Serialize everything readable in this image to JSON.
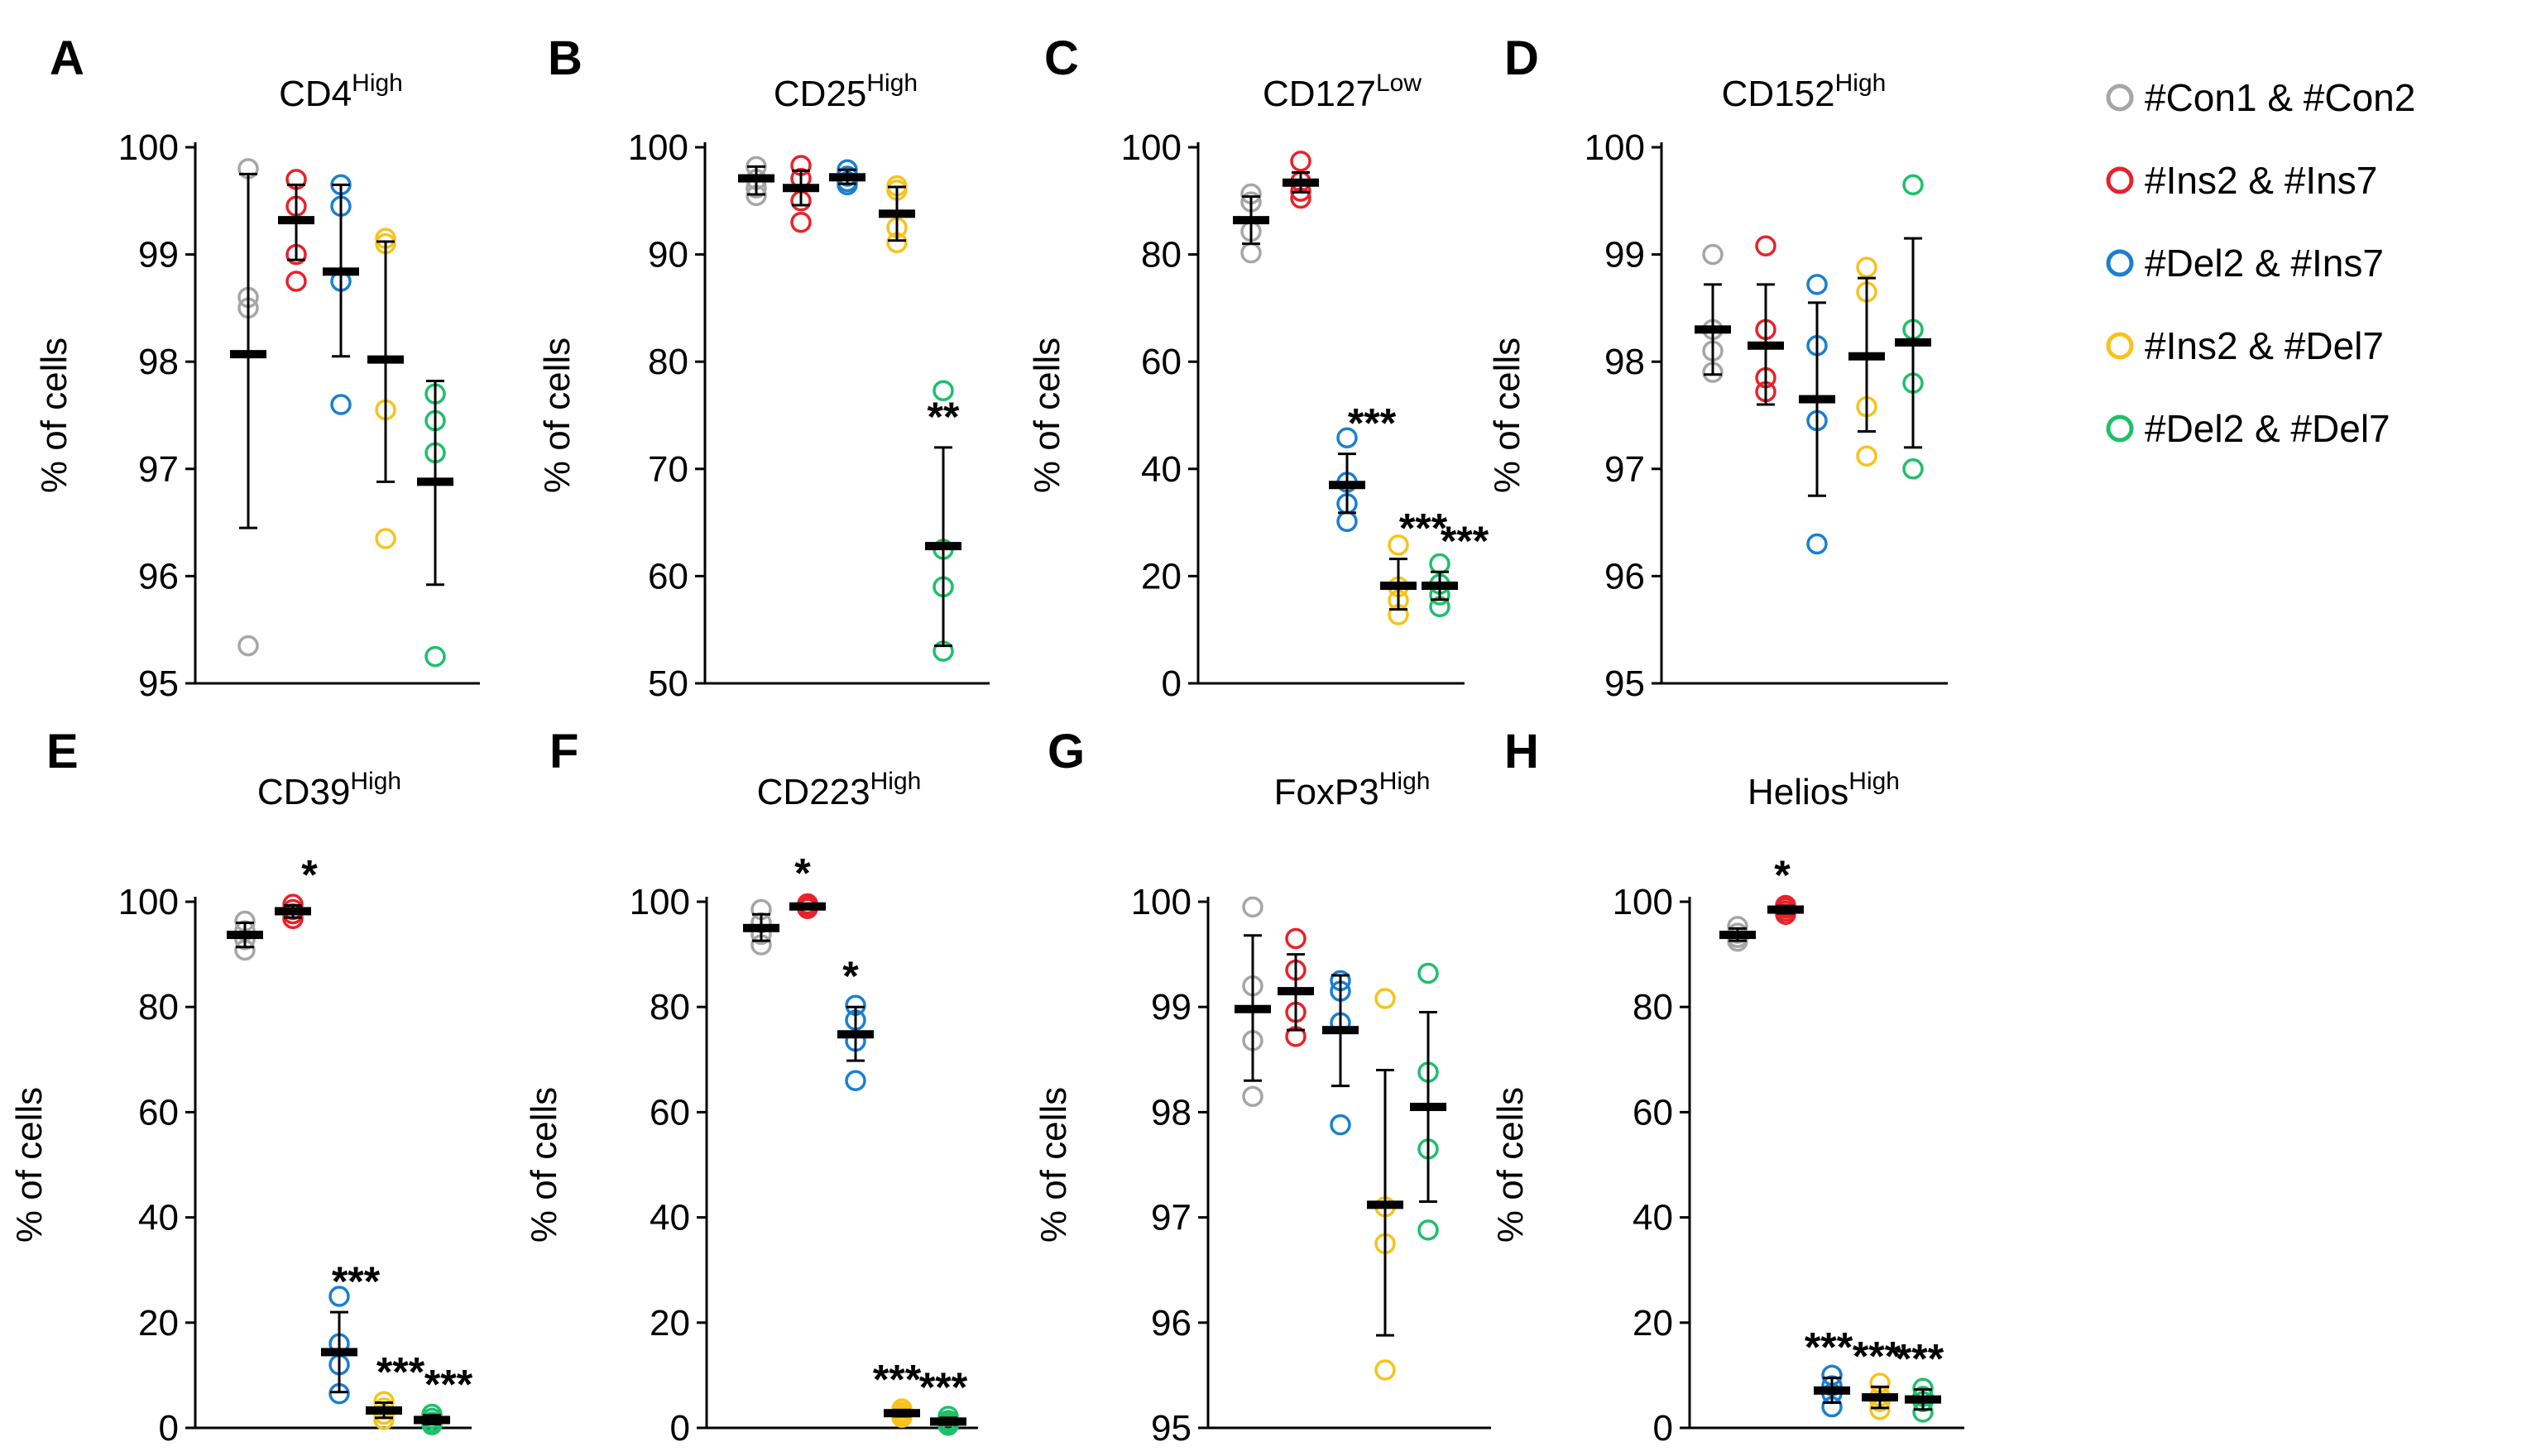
{
  "colors": {
    "Con": "#a6a6a6",
    "Ins2Ins7": "#e8222a",
    "Del2Ins7": "#1a7fd1",
    "Ins2Del7": "#f7c31c",
    "Del2Del7": "#1fbf6b",
    "mean": "#000000"
  },
  "legend": [
    {
      "label": "#Con1 & #Con2",
      "color_key": "Con"
    },
    {
      "label": "#Ins2 & #Ins7",
      "color_key": "Ins2Ins7"
    },
    {
      "label": "#Del2 & #Ins7",
      "color_key": "Del2Ins7"
    },
    {
      "label": "#Ins2 & #Del7",
      "color_key": "Ins2Del7"
    },
    {
      "label": "#Del2 & #Del7",
      "color_key": "Del2Del7"
    }
  ],
  "chart_data": [
    {
      "panel": "A",
      "type": "scatter",
      "title": "CD4",
      "title_sup": "High",
      "ylabel": "% of cells",
      "ylim": [
        95,
        100
      ],
      "yticks": [
        95,
        96,
        97,
        98,
        99,
        100
      ],
      "grid": false,
      "groups": [
        {
          "color_key": "Con",
          "points": [
            99.8,
            98.6,
            98.5,
            95.35
          ],
          "mean": 98.07,
          "err": [
            96.45,
            99.75
          ],
          "sig": ""
        },
        {
          "color_key": "Ins2Ins7",
          "points": [
            99.7,
            99.45,
            99.0,
            98.75
          ],
          "mean": 99.32,
          "err": [
            98.95,
            99.65
          ],
          "sig": ""
        },
        {
          "color_key": "Del2Ins7",
          "points": [
            99.65,
            99.45,
            98.75,
            97.6
          ],
          "mean": 98.84,
          "err": [
            98.05,
            99.65
          ],
          "sig": ""
        },
        {
          "color_key": "Ins2Del7",
          "points": [
            99.15,
            99.1,
            97.55,
            96.35
          ],
          "mean": 98.02,
          "err": [
            96.88,
            99.12
          ],
          "sig": ""
        },
        {
          "color_key": "Del2Del7",
          "points": [
            97.7,
            97.45,
            97.15,
            95.25
          ],
          "mean": 96.88,
          "err": [
            95.92,
            97.82
          ],
          "sig": ""
        }
      ]
    },
    {
      "panel": "B",
      "type": "scatter",
      "title": "CD25",
      "title_sup": "High",
      "ylabel": "% of cells",
      "ylim": [
        50,
        100
      ],
      "yticks": [
        50,
        60,
        70,
        80,
        90,
        100
      ],
      "grid": false,
      "groups": [
        {
          "color_key": "Con",
          "points": [
            98.2,
            97.0,
            96.2,
            95.5
          ],
          "mean": 97.1,
          "err": [
            95.6,
            98.2
          ],
          "sig": ""
        },
        {
          "color_key": "Ins2Ins7",
          "points": [
            98.3,
            97.1,
            95.0,
            93.0
          ],
          "mean": 96.2,
          "err": [
            94.6,
            97.8
          ],
          "sig": ""
        },
        {
          "color_key": "Del2Ins7",
          "points": [
            97.9,
            97.3,
            96.8,
            96.5
          ],
          "mean": 97.2,
          "err": [
            96.6,
            97.9
          ],
          "sig": ""
        },
        {
          "color_key": "Ins2Del7",
          "points": [
            96.4,
            96.0,
            92.5,
            91.1
          ],
          "mean": 93.8,
          "err": [
            91.3,
            96.3
          ],
          "sig": ""
        },
        {
          "color_key": "Del2Del7",
          "points": [
            77.3,
            62.5,
            59.0,
            53.0
          ],
          "mean": 62.8,
          "err": [
            53.5,
            72.0
          ],
          "sig": "**"
        }
      ]
    },
    {
      "panel": "C",
      "type": "scatter",
      "title": "CD127",
      "title_sup": "Low",
      "ylabel": "% of cells",
      "ylim": [
        0,
        100
      ],
      "yticks": [
        0,
        20,
        40,
        60,
        80,
        100
      ],
      "grid": false,
      "groups": [
        {
          "color_key": "Con",
          "points": [
            91.3,
            89.8,
            84.3,
            80.3
          ],
          "mean": 86.4,
          "err": [
            82.0,
            90.8
          ],
          "sig": ""
        },
        {
          "color_key": "Ins2Ins7",
          "points": [
            97.4,
            93.6,
            91.8,
            90.5
          ],
          "mean": 93.4,
          "err": [
            91.6,
            95.3
          ],
          "sig": ""
        },
        {
          "color_key": "Del2Ins7",
          "points": [
            45.8,
            37.5,
            33.5,
            30.2
          ],
          "mean": 37.0,
          "err": [
            31.8,
            42.8
          ],
          "sig": "***"
        },
        {
          "color_key": "Ins2Del7",
          "points": [
            25.8,
            18.0,
            15.5,
            12.8
          ],
          "mean": 18.2,
          "err": [
            13.8,
            23.2
          ],
          "sig": "***"
        },
        {
          "color_key": "Del2Del7",
          "points": [
            22.3,
            18.5,
            16.5,
            14.3
          ],
          "mean": 18.2,
          "err": [
            15.6,
            20.8
          ],
          "sig": "***"
        }
      ]
    },
    {
      "panel": "D",
      "type": "scatter",
      "title": "CD152",
      "title_sup": "High",
      "ylabel": "% of cells",
      "ylim": [
        95,
        100
      ],
      "yticks": [
        95,
        96,
        97,
        98,
        99,
        100
      ],
      "grid": false,
      "groups": [
        {
          "color_key": "Con",
          "points": [
            99.0,
            98.3,
            98.1,
            97.9
          ],
          "mean": 98.3,
          "err": [
            97.88,
            98.72
          ],
          "sig": ""
        },
        {
          "color_key": "Ins2Ins7",
          "points": [
            99.08,
            98.3,
            97.85,
            97.72
          ],
          "mean": 98.15,
          "err": [
            97.6,
            98.72
          ],
          "sig": ""
        },
        {
          "color_key": "Del2Ins7",
          "points": [
            98.72,
            98.15,
            97.45,
            96.3
          ],
          "mean": 97.65,
          "err": [
            96.75,
            98.55
          ],
          "sig": ""
        },
        {
          "color_key": "Ins2Del7",
          "points": [
            98.88,
            98.65,
            97.58,
            97.12
          ],
          "mean": 98.05,
          "err": [
            97.35,
            98.78
          ],
          "sig": ""
        },
        {
          "color_key": "Del2Del7",
          "points": [
            99.65,
            98.3,
            97.8,
            97.0
          ],
          "mean": 98.18,
          "err": [
            97.2,
            99.15
          ],
          "sig": ""
        }
      ]
    },
    {
      "panel": "E",
      "type": "scatter",
      "title": "CD39",
      "title_sup": "High",
      "ylabel": "% of cells",
      "ylim": [
        0,
        100
      ],
      "yticks": [
        0,
        20,
        40,
        60,
        80,
        100
      ],
      "grid": false,
      "groups": [
        {
          "color_key": "Con",
          "points": [
            96.3,
            94.5,
            92.8,
            90.8
          ],
          "mean": 93.7,
          "err": [
            91.4,
            96.0
          ],
          "sig": ""
        },
        {
          "color_key": "Ins2Ins7",
          "points": [
            99.5,
            98.5,
            97.7,
            96.8
          ],
          "mean": 98.2,
          "err": [
            97.0,
            99.3
          ],
          "sig": "*"
        },
        {
          "color_key": "Del2Ins7",
          "points": [
            25.0,
            16.0,
            12.0,
            6.5
          ],
          "mean": 14.4,
          "err": [
            6.8,
            22.0
          ],
          "sig": "***"
        },
        {
          "color_key": "Ins2Del7",
          "points": [
            5.0,
            3.8,
            2.6,
            1.6
          ],
          "mean": 3.3,
          "err": [
            1.9,
            4.8
          ],
          "sig": "***"
        },
        {
          "color_key": "Del2Del7",
          "points": [
            2.6,
            1.8,
            1.1,
            0.6
          ],
          "mean": 1.5,
          "err": [
            0.7,
            2.4
          ],
          "sig": "***"
        }
      ]
    },
    {
      "panel": "F",
      "type": "scatter",
      "title": "CD223",
      "title_sup": "High",
      "ylabel": "% of cells",
      "ylim": [
        0,
        100
      ],
      "yticks": [
        0,
        20,
        40,
        60,
        80,
        100
      ],
      "grid": false,
      "groups": [
        {
          "color_key": "Con",
          "points": [
            98.5,
            96.0,
            93.8,
            91.8
          ],
          "mean": 95.0,
          "err": [
            92.6,
            97.6
          ],
          "sig": ""
        },
        {
          "color_key": "Ins2Ins7",
          "points": [
            99.6,
            99.3,
            99.0,
            98.7
          ],
          "mean": 99.1,
          "err": [
            98.6,
            99.6
          ],
          "sig": "*"
        },
        {
          "color_key": "Del2Ins7",
          "points": [
            80.3,
            77.5,
            73.5,
            66.0
          ],
          "mean": 74.8,
          "err": [
            69.8,
            80.0
          ],
          "sig": "*"
        },
        {
          "color_key": "Ins2Del7",
          "points": [
            3.6,
            3.0,
            2.5,
            2.0
          ],
          "mean": 2.8,
          "err": [
            2.2,
            3.4
          ],
          "sig": "***"
        },
        {
          "color_key": "Del2Del7",
          "points": [
            2.2,
            1.4,
            0.9,
            0.5
          ],
          "mean": 1.2,
          "err": [
            0.6,
            1.9
          ],
          "sig": "***"
        }
      ]
    },
    {
      "panel": "G",
      "type": "scatter",
      "title": "FoxP3",
      "title_sup": "High",
      "ylabel": "% of cells",
      "ylim": [
        95,
        100
      ],
      "yticks": [
        95,
        96,
        97,
        98,
        99,
        100
      ],
      "grid": false,
      "groups": [
        {
          "color_key": "Con",
          "points": [
            99.95,
            99.2,
            98.68,
            98.15
          ],
          "mean": 98.98,
          "err": [
            98.3,
            99.68
          ],
          "sig": ""
        },
        {
          "color_key": "Ins2Ins7",
          "points": [
            99.65,
            99.35,
            98.95,
            98.72
          ],
          "mean": 99.15,
          "err": [
            98.78,
            99.5
          ],
          "sig": ""
        },
        {
          "color_key": "Del2Ins7",
          "points": [
            99.25,
            99.15,
            98.85,
            97.88
          ],
          "mean": 98.78,
          "err": [
            98.25,
            99.3
          ],
          "sig": ""
        },
        {
          "color_key": "Ins2Del7",
          "points": [
            99.08,
            97.1,
            96.75,
            95.55
          ],
          "mean": 97.12,
          "err": [
            95.88,
            98.4
          ],
          "sig": ""
        },
        {
          "color_key": "Del2Del7",
          "points": [
            99.32,
            98.38,
            97.65,
            96.88
          ],
          "mean": 98.05,
          "err": [
            97.15,
            98.95
          ],
          "sig": ""
        }
      ]
    },
    {
      "panel": "H",
      "type": "scatter",
      "title": "Helios",
      "title_sup": "High",
      "ylabel": "% of cells",
      "ylim": [
        0,
        100
      ],
      "yticks": [
        0,
        20,
        40,
        60,
        80,
        100
      ],
      "grid": false,
      "groups": [
        {
          "color_key": "Con",
          "points": [
            95.3,
            94.0,
            93.2,
            92.5
          ],
          "mean": 93.7,
          "err": [
            92.6,
            94.9
          ],
          "sig": ""
        },
        {
          "color_key": "Ins2Ins7",
          "points": [
            99.3,
            98.8,
            98.2,
            97.6
          ],
          "mean": 98.5,
          "err": [
            97.8,
            99.2
          ],
          "sig": "*"
        },
        {
          "color_key": "Del2Ins7",
          "points": [
            10.0,
            8.0,
            6.5,
            4.0
          ],
          "mean": 7.1,
          "err": [
            4.8,
            9.5
          ],
          "sig": "***"
        },
        {
          "color_key": "Ins2Del7",
          "points": [
            8.5,
            6.0,
            5.0,
            3.5
          ],
          "mean": 5.8,
          "err": [
            3.8,
            7.8
          ],
          "sig": "***"
        },
        {
          "color_key": "Del2Del7",
          "points": [
            7.5,
            6.0,
            5.0,
            3.0
          ],
          "mean": 5.4,
          "err": [
            3.5,
            7.3
          ],
          "sig": "***"
        }
      ]
    }
  ]
}
